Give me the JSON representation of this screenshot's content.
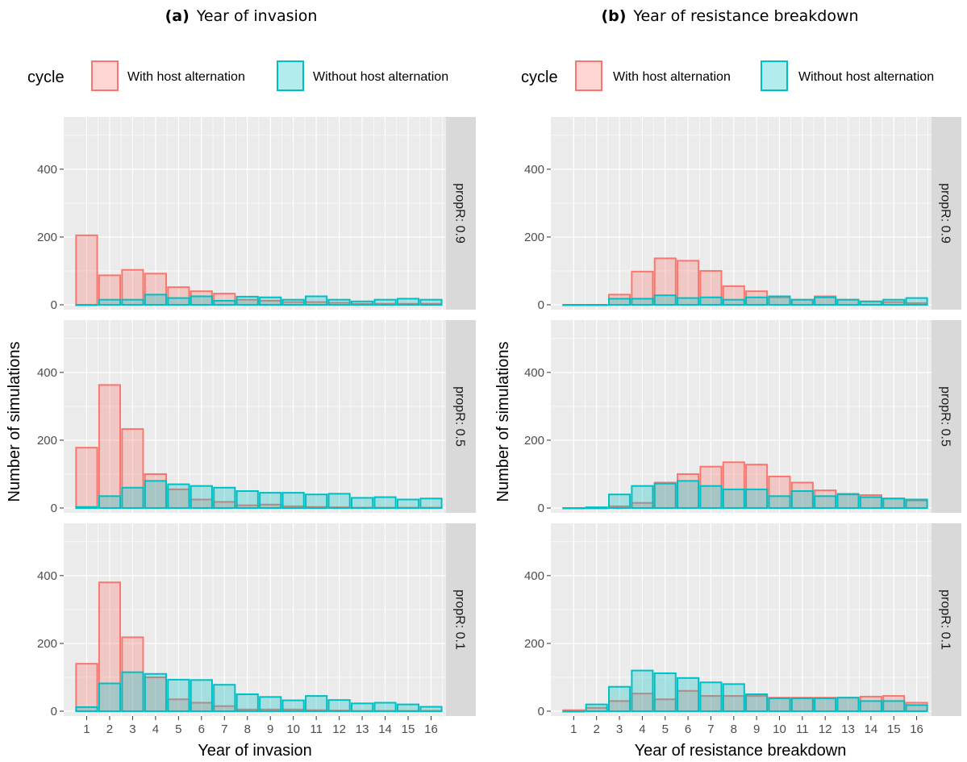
{
  "colors": {
    "with": "#F8766D",
    "without": "#00BFC4",
    "panel_bg": "#EBEBEB",
    "strip_bg": "#D9D9D9",
    "grid": "#FFFFFF"
  },
  "legend": {
    "title": "cycle",
    "entries": [
      "With host alternation",
      "Without host alternation"
    ]
  },
  "chart_data": [
    {
      "type": "bar",
      "title_label": "(a)",
      "title": "Year of invasion",
      "xlabel": "Year of invasion",
      "ylabel": "Number of simulations",
      "categories": [
        "1",
        "2",
        "3",
        "4",
        "5",
        "6",
        "7",
        "8",
        "9",
        "10",
        "11",
        "12",
        "13",
        "14",
        "15",
        "16"
      ],
      "ylim": [
        0,
        540
      ],
      "yticks": [
        0,
        200,
        400
      ],
      "facets": [
        {
          "strip": "propR: 0.9",
          "series": [
            {
              "name": "With host alternation",
              "values": [
                205,
                87,
                103,
                92,
                52,
                40,
                33,
                15,
                12,
                8,
                8,
                6,
                3,
                3,
                3,
                3
              ]
            },
            {
              "name": "Without host alternation",
              "values": [
                0,
                15,
                15,
                30,
                20,
                25,
                12,
                24,
                22,
                15,
                25,
                15,
                10,
                15,
                18,
                15
              ]
            }
          ]
        },
        {
          "strip": "propR: 0.5",
          "series": [
            {
              "name": "With host alternation",
              "values": [
                178,
                363,
                233,
                100,
                55,
                25,
                18,
                8,
                10,
                5,
                3,
                2,
                1,
                1,
                1,
                1
              ]
            },
            {
              "name": "Without host alternation",
              "values": [
                3,
                35,
                60,
                80,
                70,
                65,
                60,
                50,
                45,
                45,
                40,
                42,
                30,
                32,
                25,
                28
              ]
            }
          ]
        },
        {
          "strip": "propR: 0.1",
          "series": [
            {
              "name": "With host alternation",
              "values": [
                140,
                380,
                218,
                100,
                35,
                25,
                15,
                5,
                5,
                5,
                3,
                2,
                1,
                1,
                1,
                1
              ]
            },
            {
              "name": "Without host alternation",
              "values": [
                12,
                82,
                115,
                110,
                93,
                92,
                78,
                50,
                42,
                32,
                45,
                33,
                23,
                25,
                20,
                13
              ]
            }
          ]
        }
      ]
    },
    {
      "type": "bar",
      "title_label": "(b)",
      "title": "Year of resistance breakdown",
      "xlabel": "Year of resistance breakdown",
      "ylabel": "Number of simulations",
      "categories": [
        "1",
        "2",
        "3",
        "4",
        "5",
        "6",
        "7",
        "8",
        "9",
        "10",
        "11",
        "12",
        "13",
        "14",
        "15",
        "16"
      ],
      "ylim": [
        0,
        540
      ],
      "yticks": [
        0,
        200,
        400
      ],
      "facets": [
        {
          "strip": "propR: 0.9",
          "series": [
            {
              "name": "With host alternation",
              "values": [
                0,
                0,
                30,
                98,
                137,
                130,
                100,
                55,
                40,
                22,
                15,
                25,
                15,
                10,
                8,
                5
              ]
            },
            {
              "name": "Without host alternation",
              "values": [
                0,
                0,
                18,
                18,
                28,
                20,
                22,
                15,
                22,
                25,
                15,
                22,
                15,
                10,
                15,
                20
              ]
            }
          ]
        },
        {
          "strip": "propR: 0.5",
          "series": [
            {
              "name": "With host alternation",
              "values": [
                0,
                0,
                5,
                15,
                75,
                100,
                122,
                135,
                128,
                93,
                75,
                52,
                42,
                38,
                28,
                22
              ]
            },
            {
              "name": "Without host alternation",
              "values": [
                0,
                2,
                40,
                65,
                72,
                80,
                65,
                55,
                55,
                35,
                50,
                35,
                40,
                32,
                28,
                25
              ]
            }
          ]
        },
        {
          "strip": "propR: 0.1",
          "series": [
            {
              "name": "With host alternation",
              "values": [
                3,
                10,
                30,
                52,
                35,
                60,
                45,
                45,
                45,
                40,
                40,
                40,
                40,
                43,
                45,
                25
              ]
            },
            {
              "name": "Without host alternation",
              "values": [
                0,
                20,
                72,
                120,
                112,
                98,
                85,
                80,
                50,
                38,
                38,
                38,
                40,
                30,
                30,
                18
              ]
            }
          ]
        }
      ]
    }
  ]
}
